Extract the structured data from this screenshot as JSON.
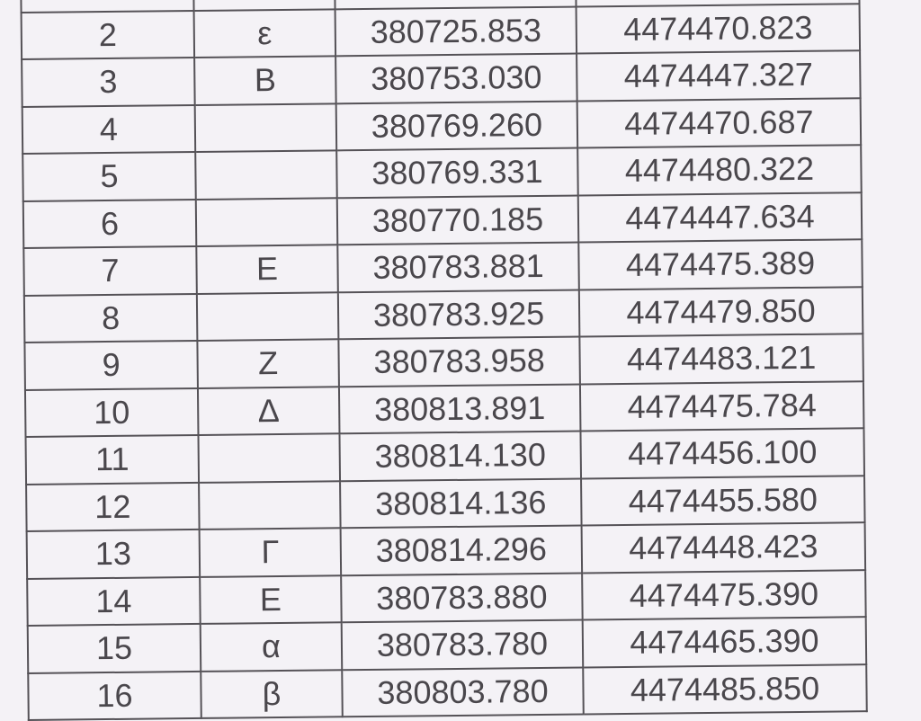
{
  "table": {
    "rows": [
      {
        "no": "",
        "label": "",
        "x": "",
        "y": ""
      },
      {
        "no": "2",
        "label": "ε",
        "x": "380725.853",
        "y": "4474470.823"
      },
      {
        "no": "3",
        "label": "B",
        "x": "380753.030",
        "y": "4474447.327"
      },
      {
        "no": "4",
        "label": "",
        "x": "380769.260",
        "y": "4474470.687"
      },
      {
        "no": "5",
        "label": "",
        "x": "380769.331",
        "y": "4474480.322"
      },
      {
        "no": "6",
        "label": "",
        "x": "380770.185",
        "y": "4474447.634"
      },
      {
        "no": "7",
        "label": "E",
        "x": "380783.881",
        "y": "4474475.389"
      },
      {
        "no": "8",
        "label": "",
        "x": "380783.925",
        "y": "4474479.850"
      },
      {
        "no": "9",
        "label": "Z",
        "x": "380783.958",
        "y": "4474483.121"
      },
      {
        "no": "10",
        "label": "Δ",
        "x": "380813.891",
        "y": "4474475.784"
      },
      {
        "no": "11",
        "label": "",
        "x": "380814.130",
        "y": "4474456.100"
      },
      {
        "no": "12",
        "label": "",
        "x": "380814.136",
        "y": "4474455.580"
      },
      {
        "no": "13",
        "label": "Γ",
        "x": "380814.296",
        "y": "4474448.423"
      },
      {
        "no": "14",
        "label": "E",
        "x": "380783.880",
        "y": "4474475.390"
      },
      {
        "no": "15",
        "label": "α",
        "x": "380783.780",
        "y": "4474465.390"
      },
      {
        "no": "16",
        "label": "β",
        "x": "380803.780",
        "y": "4474485.850"
      }
    ]
  }
}
